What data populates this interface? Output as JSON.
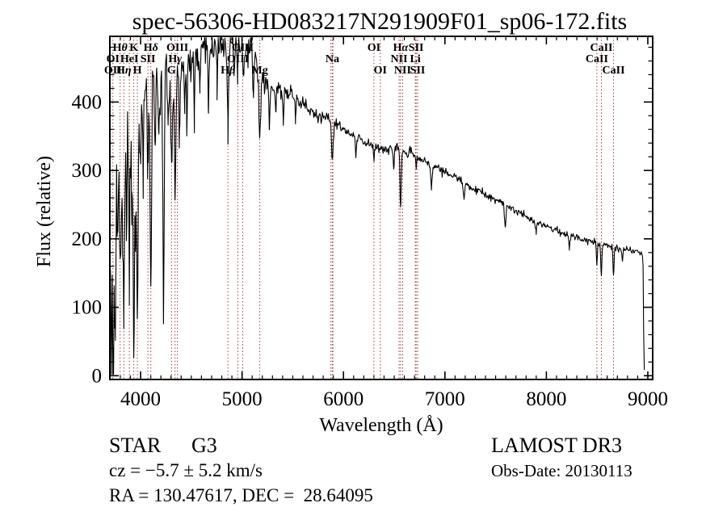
{
  "title": "spec-56306-HD083217N291909F01_sp06-172.fits",
  "annotations": {
    "object_type": "STAR",
    "subclass": "G3",
    "survey": "LAMOST DR3",
    "cz_line": "cz = −5.7 ± 5.2 km/s",
    "obs_date_line": "Obs-Date: 20130113",
    "radec_line": "RA = 130.47617, DEC =  28.64095"
  },
  "chart_data": {
    "type": "line",
    "title": "spec-56306-HD083217N291909F01_sp06-172.fits",
    "xlabel": "Wavelength (Å)",
    "ylabel": "Flux (relative)",
    "xlim": [
      3697,
      9048
    ],
    "ylim": [
      -5.5,
      496
    ],
    "x_ticks": [
      4000,
      5000,
      6000,
      7000,
      8000,
      9000
    ],
    "y_ticks": [
      0,
      100,
      200,
      300,
      400
    ],
    "x_minor_step": 100,
    "y_minor_step": 20,
    "grid": false,
    "line_color": "#000000",
    "marker_color": "#993b38",
    "line_markers": {
      "marker_wavelengths": [
        3727,
        3798,
        3835,
        3889,
        3933,
        3968,
        4072,
        4101,
        4305,
        4340,
        4363,
        4861,
        4959,
        5007,
        5175,
        5876,
        5890,
        5896,
        6300,
        6363,
        6548,
        6563,
        6583,
        6708,
        6716,
        6731,
        8498,
        8542,
        8662
      ],
      "rows": [
        {
          "row": 1,
          "baseline_y": 63,
          "items": [
            {
              "label": "Hθ",
              "wavelength": 3798
            },
            {
              "label": "K",
              "wavelength": 3933
            },
            {
              "label": "Hδ",
              "wavelength": 4101
            },
            {
              "label": "OIII",
              "wavelength": 4363
            },
            {
              "label": "OIII",
              "wavelength": 5007
            },
            {
              "label": "OI",
              "wavelength": 6300
            },
            {
              "label": "Hα",
              "wavelength": 6563
            },
            {
              "label": "SII",
              "wavelength": 6716
            },
            {
              "label": "CaII",
              "wavelength": 8542
            }
          ]
        },
        {
          "row": 2,
          "baseline_y": 77,
          "items": [
            {
              "label": "OI",
              "wavelength": 3727
            },
            {
              "label": "HeI",
              "wavelength": 3889
            },
            {
              "label": "SII",
              "wavelength": 4072
            },
            {
              "label": "Hγ",
              "wavelength": 4340
            },
            {
              "label": "OIII",
              "wavelength": 4959
            },
            {
              "label": "Na",
              "wavelength": 5890
            },
            {
              "label": "NII",
              "wavelength": 6548
            },
            {
              "label": "Li",
              "wavelength": 6708
            },
            {
              "label": "CaII",
              "wavelength": 8498
            }
          ]
        },
        {
          "row": 3,
          "baseline_y": 91,
          "items": [
            {
              "label": "OII",
              "wavelength": 3727
            },
            {
              "label": "Hη",
              "wavelength": 3835
            },
            {
              "label": "H",
              "wavelength": 3968
            },
            {
              "label": "G",
              "wavelength": 4305
            },
            {
              "label": "Hβ",
              "wavelength": 4861
            },
            {
              "label": "Mg",
              "wavelength": 5175
            },
            {
              "label": "OI",
              "wavelength": 6363
            },
            {
              "label": "NII",
              "wavelength": 6583
            },
            {
              "label": "SII",
              "wavelength": 6731
            },
            {
              "label": "CaII",
              "wavelength": 8662
            }
          ]
        }
      ]
    },
    "spectrum": {
      "sample_step": 6,
      "noise_seed": 11,
      "continuum": [
        [
          3697,
          210
        ],
        [
          3720,
          250
        ],
        [
          3740,
          265
        ],
        [
          3760,
          300
        ],
        [
          3780,
          318
        ],
        [
          3800,
          330
        ],
        [
          3830,
          345
        ],
        [
          3860,
          355
        ],
        [
          3890,
          365
        ],
        [
          3920,
          372
        ],
        [
          3950,
          380
        ],
        [
          3980,
          390
        ],
        [
          4010,
          400
        ],
        [
          4050,
          410
        ],
        [
          4100,
          420
        ],
        [
          4150,
          428
        ],
        [
          4200,
          433
        ],
        [
          4250,
          436
        ],
        [
          4300,
          438
        ],
        [
          4350,
          443
        ],
        [
          4400,
          448
        ],
        [
          4450,
          454
        ],
        [
          4500,
          459
        ],
        [
          4550,
          463
        ],
        [
          4600,
          468
        ],
        [
          4650,
          476
        ],
        [
          4700,
          483
        ],
        [
          4750,
          486
        ],
        [
          4800,
          485
        ],
        [
          4850,
          484
        ],
        [
          4900,
          486
        ],
        [
          4950,
          487
        ],
        [
          5000,
          484
        ],
        [
          5040,
          479
        ],
        [
          5080,
          472
        ],
        [
          5120,
          464
        ],
        [
          5160,
          452
        ],
        [
          5200,
          436
        ],
        [
          5240,
          428
        ],
        [
          5280,
          424
        ],
        [
          5330,
          421
        ],
        [
          5380,
          418
        ],
        [
          5430,
          415
        ],
        [
          5480,
          412
        ],
        [
          5530,
          407
        ],
        [
          5580,
          400
        ],
        [
          5630,
          393
        ],
        [
          5680,
          386
        ],
        [
          5730,
          381
        ],
        [
          5780,
          377
        ],
        [
          5830,
          374
        ],
        [
          5880,
          372
        ],
        [
          5930,
          368
        ],
        [
          5980,
          362
        ],
        [
          6050,
          354
        ],
        [
          6120,
          348
        ],
        [
          6200,
          342
        ],
        [
          6280,
          337
        ],
        [
          6360,
          333
        ],
        [
          6440,
          331
        ],
        [
          6520,
          330
        ],
        [
          6600,
          327
        ],
        [
          6680,
          323
        ],
        [
          6760,
          317
        ],
        [
          6840,
          311
        ],
        [
          6920,
          305
        ],
        [
          7000,
          298
        ],
        [
          7090,
          291
        ],
        [
          7180,
          283
        ],
        [
          7270,
          274
        ],
        [
          7360,
          267
        ],
        [
          7450,
          260
        ],
        [
          7540,
          254
        ],
        [
          7630,
          247
        ],
        [
          7720,
          240
        ],
        [
          7810,
          232
        ],
        [
          7900,
          226
        ],
        [
          8000,
          219
        ],
        [
          8100,
          212
        ],
        [
          8200,
          207
        ],
        [
          8300,
          202
        ],
        [
          8400,
          198
        ],
        [
          8500,
          195
        ],
        [
          8600,
          191
        ],
        [
          8700,
          187
        ],
        [
          8800,
          184
        ],
        [
          8870,
          182
        ],
        [
          8930,
          181
        ],
        [
          8950,
          178
        ],
        [
          8956,
          140
        ],
        [
          8960,
          40
        ],
        [
          8964,
          10
        ],
        [
          8970,
          6
        ]
      ],
      "absorption_lines": [
        [
          3712,
          150,
          5
        ],
        [
          3727,
          160,
          6
        ],
        [
          3734,
          200,
          5
        ],
        [
          3750,
          240,
          5
        ],
        [
          3770,
          140,
          5
        ],
        [
          3798,
          210,
          6
        ],
        [
          3820,
          120,
          5
        ],
        [
          3835,
          250,
          6
        ],
        [
          3860,
          135,
          5
        ],
        [
          3889,
          215,
          6
        ],
        [
          3912,
          125,
          5
        ],
        [
          3933,
          320,
          7
        ],
        [
          3950,
          140,
          5
        ],
        [
          3968,
          290,
          7
        ],
        [
          4000,
          100,
          5
        ],
        [
          4026,
          120,
          5
        ],
        [
          4072,
          120,
          5
        ],
        [
          4101,
          290,
          7
        ],
        [
          4144,
          100,
          5
        ],
        [
          4180,
          80,
          5
        ],
        [
          4226,
          350,
          6
        ],
        [
          4271,
          90,
          5
        ],
        [
          4305,
          110,
          9
        ],
        [
          4340,
          185,
          7
        ],
        [
          4383,
          115,
          5
        ],
        [
          4435,
          70,
          5
        ],
        [
          4455,
          90,
          5
        ],
        [
          4531,
          80,
          5
        ],
        [
          4585,
          60,
          5
        ],
        [
          4668,
          90,
          5
        ],
        [
          4754,
          60,
          5
        ],
        [
          4861,
          130,
          7
        ],
        [
          4921,
          60,
          5
        ],
        [
          4957,
          45,
          4
        ],
        [
          5015,
          55,
          5
        ],
        [
          5110,
          50,
          5
        ],
        [
          5175,
          105,
          8
        ],
        [
          5270,
          60,
          6
        ],
        [
          5332,
          35,
          5
        ],
        [
          5406,
          45,
          5
        ],
        [
          5528,
          30,
          5
        ],
        [
          5890,
          54,
          8
        ],
        [
          6122,
          28,
          5
        ],
        [
          6300,
          20,
          4
        ],
        [
          6495,
          25,
          5
        ],
        [
          6563,
          82,
          6
        ],
        [
          6717,
          18,
          4
        ],
        [
          6867,
          38,
          7
        ],
        [
          7186,
          25,
          7
        ],
        [
          7594,
          32,
          8
        ],
        [
          7900,
          15,
          6
        ],
        [
          8227,
          22,
          6
        ],
        [
          8498,
          32,
          5
        ],
        [
          8542,
          46,
          5
        ],
        [
          8662,
          42,
          5
        ],
        [
          8750,
          18,
          5
        ]
      ],
      "noise_profile": [
        [
          3697,
          45
        ],
        [
          3780,
          42
        ],
        [
          3850,
          34
        ],
        [
          3920,
          28
        ],
        [
          4000,
          22
        ],
        [
          4100,
          19
        ],
        [
          4250,
          17
        ],
        [
          4400,
          15
        ],
        [
          4600,
          13
        ],
        [
          4800,
          11
        ],
        [
          5000,
          10
        ],
        [
          5150,
          9
        ],
        [
          5300,
          6.5
        ],
        [
          5500,
          5.5
        ],
        [
          5700,
          5
        ],
        [
          5900,
          4.5
        ],
        [
          6100,
          4
        ],
        [
          6400,
          3.5
        ],
        [
          6800,
          3
        ],
        [
          7300,
          2.8
        ],
        [
          7900,
          2.6
        ],
        [
          8400,
          2.5
        ],
        [
          8800,
          2.5
        ],
        [
          8950,
          2.5
        ]
      ]
    }
  }
}
